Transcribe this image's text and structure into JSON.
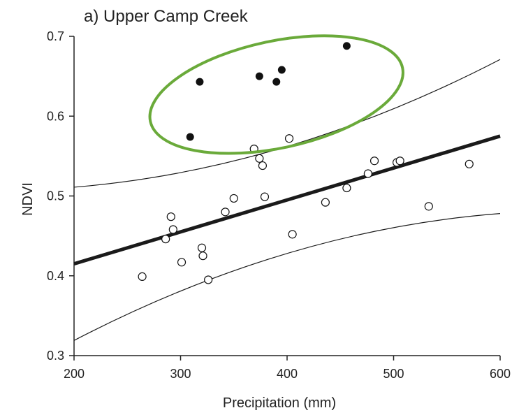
{
  "chart_data": {
    "type": "scatter",
    "title": "a) Upper Camp Creek",
    "xlabel": "Precipitation (mm)",
    "ylabel": "NDVI",
    "xlim": [
      200,
      600
    ],
    "ylim": [
      0.3,
      0.7
    ],
    "xticks": [
      200,
      300,
      400,
      500,
      600
    ],
    "yticks": [
      0.3,
      0.4,
      0.5,
      0.6,
      0.7
    ],
    "xtick_labels": [
      "200",
      "300",
      "400",
      "500",
      "600"
    ],
    "ytick_labels": [
      "0.3",
      "0.4",
      "0.5",
      "0.6",
      "0.7"
    ],
    "grid": false,
    "series": [
      {
        "marker": "filled-circle",
        "color": "#111111",
        "points": [
          [
            309,
            0.574
          ],
          [
            318,
            0.643
          ],
          [
            374,
            0.65
          ],
          [
            390,
            0.643
          ],
          [
            395,
            0.658
          ],
          [
            456,
            0.688
          ]
        ]
      },
      {
        "marker": "open-circle",
        "color": "#111111",
        "points": [
          [
            264,
            0.399
          ],
          [
            286,
            0.446
          ],
          [
            291,
            0.474
          ],
          [
            293,
            0.458
          ],
          [
            301,
            0.417
          ],
          [
            320,
            0.435
          ],
          [
            321,
            0.425
          ],
          [
            326,
            0.395
          ],
          [
            342,
            0.48
          ],
          [
            350,
            0.497
          ],
          [
            369,
            0.559
          ],
          [
            374,
            0.547
          ],
          [
            377,
            0.538
          ],
          [
            379,
            0.499
          ],
          [
            402,
            0.572
          ],
          [
            405,
            0.452
          ],
          [
            436,
            0.492
          ],
          [
            456,
            0.51
          ],
          [
            476,
            0.528
          ],
          [
            482,
            0.544
          ],
          [
            503,
            0.542
          ],
          [
            506,
            0.544
          ],
          [
            533,
            0.487
          ],
          [
            571,
            0.54
          ]
        ]
      }
    ],
    "lines": [
      {
        "role": "regression",
        "x": [
          200,
          600
        ],
        "y": [
          0.415,
          0.575
        ],
        "color": "#1a1a1a"
      },
      {
        "role": "upper-band",
        "x": [
          200,
          400,
          600
        ],
        "y": [
          0.511,
          0.562,
          0.671
        ],
        "color": "#1a1a1a"
      },
      {
        "role": "lower-band",
        "x": [
          200,
          400,
          600
        ],
        "y": [
          0.319,
          0.428,
          0.478
        ],
        "color": "#1a1a1a"
      }
    ],
    "annotations": [
      {
        "type": "ellipse",
        "color": "#6aaa3a",
        "center": [
          390,
          0.627
        ],
        "rx_data": 121,
        "ry_data": 0.067
      }
    ]
  }
}
